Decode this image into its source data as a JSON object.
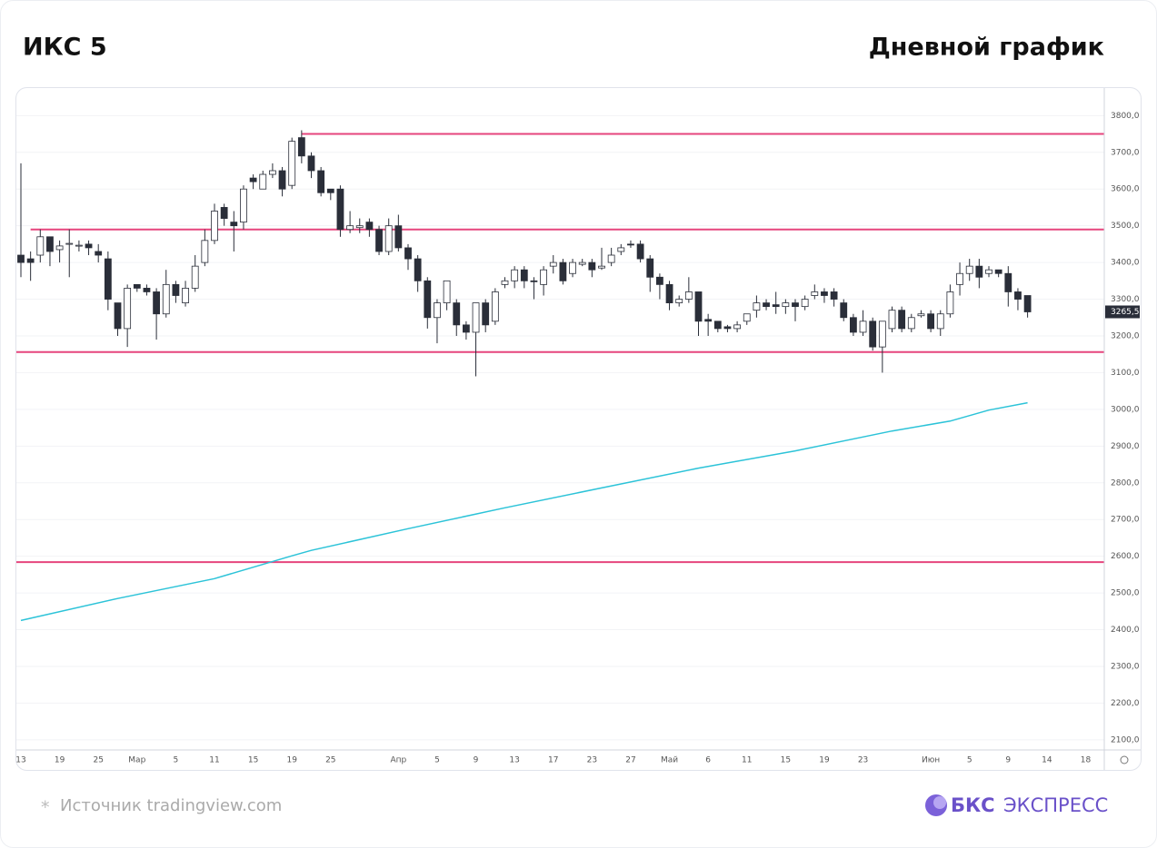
{
  "header": {
    "title": "ИКС 5",
    "subtitle": "Дневной график"
  },
  "chart_data": {
    "type": "candlestick",
    "categories": [
      "13",
      null,
      null,
      null,
      "19",
      null,
      null,
      null,
      "25",
      null,
      null,
      null,
      "Мар",
      null,
      null,
      null,
      "5",
      null,
      null,
      null,
      "11",
      null,
      null,
      null,
      "15",
      null,
      null,
      null,
      "19",
      null,
      null,
      null,
      "25",
      null,
      null,
      null,
      null,
      null,
      null,
      "Апр",
      null,
      null,
      null,
      "5",
      null,
      null,
      null,
      "9",
      null,
      null,
      null,
      "13",
      null,
      null,
      null,
      "17",
      null,
      null,
      null,
      "23",
      null,
      null,
      null,
      "27",
      null,
      null,
      null,
      "Май",
      null,
      null,
      null,
      "6",
      null,
      null,
      null,
      "11",
      null,
      null,
      null,
      "15",
      null,
      null,
      null,
      "19",
      null,
      null,
      null,
      "23",
      null,
      null,
      null,
      null,
      null,
      null,
      "Июн",
      null,
      null,
      null,
      "5",
      null,
      null,
      null,
      "9",
      null,
      null,
      null,
      "14",
      null,
      null,
      null,
      "18"
    ],
    "open": [
      3420,
      3410,
      3420,
      3470,
      3435,
      3450,
      3445,
      3450,
      3430,
      3410,
      3290,
      3220,
      3340,
      3330,
      3320,
      3260,
      3340,
      3290,
      3330,
      3400,
      3460,
      3550,
      3510,
      3510,
      3630,
      3600,
      3640,
      3650,
      3610,
      3740,
      3690,
      3650,
      3600,
      3600,
      3490,
      3495,
      3510,
      3490,
      3430,
      3500,
      3440,
      3410,
      3350,
      3250,
      3290,
      3290,
      3230,
      3210,
      3290,
      3240,
      3340,
      3350,
      3380,
      3350,
      3340,
      3390,
      3400,
      3370,
      3395,
      3400,
      3385,
      3400,
      3430,
      3450,
      3450,
      3410,
      3360,
      3340,
      3290,
      3300,
      3320,
      3245,
      3240,
      3225,
      3220,
      3240,
      3270,
      3290,
      3285,
      3280,
      3290,
      3280,
      3310,
      3320,
      3320,
      3290,
      3250,
      3210,
      3240,
      3170,
      3220,
      3270,
      3220,
      3255,
      3260,
      3220,
      3260,
      3340,
      3370,
      3390,
      3370,
      3380,
      3370,
      3320,
      3310,
      null,
      null,
      null,
      null,
      null,
      null
    ],
    "high": [
      3670,
      3430,
      3490,
      3470,
      3460,
      3490,
      3460,
      3460,
      3450,
      3430,
      3290,
      3340,
      3340,
      3340,
      3330,
      3380,
      3350,
      3350,
      3420,
      3490,
      3560,
      3560,
      3540,
      3610,
      3640,
      3650,
      3670,
      3660,
      3740,
      3760,
      3700,
      3660,
      3600,
      3610,
      3540,
      3520,
      3520,
      3500,
      3520,
      3530,
      3450,
      3420,
      3360,
      3300,
      3350,
      3300,
      3240,
      3290,
      3300,
      3330,
      3360,
      3390,
      3390,
      3360,
      3390,
      3420,
      3410,
      3410,
      3410,
      3410,
      3440,
      3440,
      3450,
      3460,
      3460,
      3420,
      3370,
      3350,
      3310,
      3360,
      3320,
      3260,
      3240,
      3230,
      3240,
      3260,
      3310,
      3300,
      3320,
      3300,
      3300,
      3310,
      3340,
      3330,
      3330,
      3300,
      3260,
      3270,
      3250,
      3240,
      3280,
      3280,
      3260,
      3270,
      3270,
      3270,
      3340,
      3400,
      3410,
      3410,
      3390,
      3380,
      3390,
      3330,
      3310,
      null,
      null,
      null,
      null,
      null,
      null
    ],
    "low": [
      3360,
      3350,
      3400,
      3390,
      3400,
      3360,
      3430,
      3420,
      3400,
      3270,
      3200,
      3170,
      3320,
      3310,
      3190,
      3250,
      3290,
      3280,
      3320,
      3390,
      3450,
      3500,
      3430,
      3490,
      3600,
      3600,
      3630,
      3580,
      3600,
      3670,
      3630,
      3580,
      3570,
      3470,
      3480,
      3480,
      3470,
      3420,
      3420,
      3430,
      3380,
      3320,
      3220,
      3180,
      3270,
      3200,
      3190,
      3090,
      3210,
      3230,
      3330,
      3330,
      3330,
      3300,
      3310,
      3370,
      3340,
      3360,
      3390,
      3360,
      3380,
      3390,
      3420,
      3440,
      3400,
      3320,
      3300,
      3270,
      3280,
      3290,
      3200,
      3200,
      3210,
      3210,
      3210,
      3230,
      3250,
      3270,
      3260,
      3260,
      3240,
      3270,
      3300,
      3290,
      3280,
      3240,
      3200,
      3200,
      3160,
      3100,
      3210,
      3210,
      3210,
      3250,
      3210,
      3200,
      3250,
      3310,
      3350,
      3330,
      3360,
      3360,
      3280,
      3270,
      3250,
      null,
      null,
      null,
      null,
      null,
      null
    ],
    "close": [
      3400,
      3400,
      3470,
      3430,
      3445,
      3452,
      3447,
      3440,
      3420,
      3300,
      3220,
      3330,
      3330,
      3320,
      3260,
      3340,
      3310,
      3330,
      3390,
      3460,
      3540,
      3520,
      3500,
      3600,
      3620,
      3640,
      3650,
      3600,
      3730,
      3690,
      3650,
      3590,
      3590,
      3490,
      3500,
      3500,
      3490,
      3430,
      3500,
      3440,
      3410,
      3350,
      3250,
      3290,
      3350,
      3230,
      3210,
      3290,
      3230,
      3320,
      3350,
      3380,
      3350,
      3348,
      3380,
      3400,
      3350,
      3400,
      3400,
      3380,
      3390,
      3420,
      3440,
      3448,
      3410,
      3360,
      3340,
      3290,
      3300,
      3320,
      3240,
      3240,
      3220,
      3220,
      3230,
      3260,
      3290,
      3280,
      3280,
      3290,
      3280,
      3300,
      3320,
      3310,
      3300,
      3250,
      3210,
      3240,
      3170,
      3240,
      3270,
      3220,
      3250,
      3260,
      3220,
      3260,
      3320,
      3370,
      3390,
      3360,
      3380,
      3370,
      3320,
      3300,
      3265.5,
      null,
      null,
      null,
      null,
      null,
      null
    ],
    "up_color": "#ffffff",
    "down_color": "#2a2e39",
    "wick_color": "#2a2e39",
    "ma": {
      "color": "#2cc3d8",
      "x": [
        0,
        10,
        20,
        28,
        30,
        40,
        50,
        60,
        70,
        80,
        90,
        96,
        100,
        104
      ],
      "values": [
        2425,
        2485,
        2539,
        2601,
        2616,
        2675,
        2732,
        2786,
        2840,
        2887,
        2941,
        2968,
        2998,
        3018
      ]
    },
    "levels": [
      {
        "value": 3750,
        "start": 29,
        "color": "#e6457d"
      },
      {
        "value": 3490,
        "start": 1,
        "color": "#e6457d"
      },
      {
        "value": 3156,
        "start": 0,
        "color": "#e6457d"
      },
      {
        "value": 2584,
        "start": 0,
        "color": "#e6457d"
      }
    ],
    "last_price": {
      "value": 3265.5,
      "label": "3265,5"
    },
    "ylim": [
      2070,
      3875
    ],
    "yticks": [
      {
        "value": 2100,
        "label": "2100,0"
      },
      {
        "value": 2200,
        "label": "2200,0"
      },
      {
        "value": 2300,
        "label": "2300,0"
      },
      {
        "value": 2400,
        "label": "2400,0"
      },
      {
        "value": 2500,
        "label": "2500,0"
      },
      {
        "value": 2600,
        "label": "2600,0"
      },
      {
        "value": 2700,
        "label": "2700,0"
      },
      {
        "value": 2800,
        "label": "2800,0"
      },
      {
        "value": 2900,
        "label": "2900,0"
      },
      {
        "value": 3000,
        "label": "3000,0"
      },
      {
        "value": 3100,
        "label": "3100,0"
      },
      {
        "value": 3200,
        "label": "3200,0"
      },
      {
        "value": 3300,
        "label": "3300,0"
      },
      {
        "value": 3400,
        "label": "3400,0"
      },
      {
        "value": 3500,
        "label": "3500,0"
      },
      {
        "value": 3600,
        "label": "3600,0"
      },
      {
        "value": 3700,
        "label": "3700,0"
      },
      {
        "value": 3800,
        "label": "3800,0"
      }
    ],
    "grid": true
  },
  "footer": {
    "mark": "*",
    "source": "Источник tradingview.com",
    "brand_bold": "БКС",
    "brand": "ЭКСПРЕСС"
  }
}
